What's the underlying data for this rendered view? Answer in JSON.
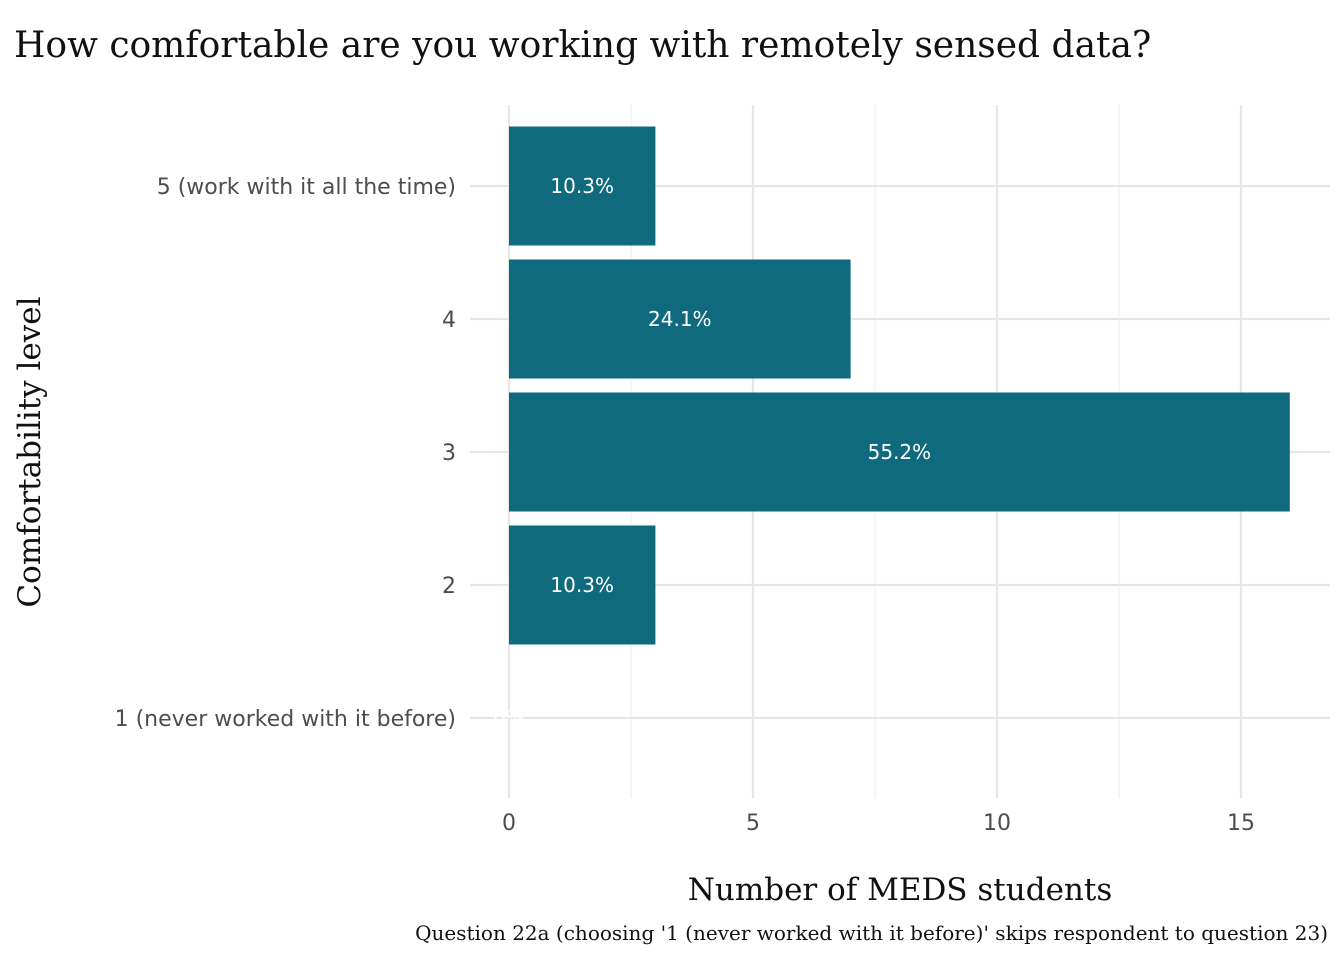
{
  "chart_data": {
    "type": "bar",
    "orientation": "horizontal",
    "title": "How comfortable are you working with remotely sensed data?",
    "xlabel": "Number of MEDS students",
    "ylabel": "Comfortability level",
    "caption": "Question 22a (choosing '1 (never worked with it before)' skips respondent to question 23)",
    "categories": [
      "1 (never worked with it before)",
      "2",
      "3",
      "4",
      "5 (work with it all the time)"
    ],
    "values": [
      0,
      3,
      16,
      7,
      3
    ],
    "labels": [
      "0%",
      "10.3%",
      "55.2%",
      "24.1%",
      "10.3%"
    ],
    "xlim": [
      0,
      16.8
    ],
    "xticks": [
      0,
      5,
      10,
      15
    ],
    "grid": true,
    "bar_color": "#0f6a7d",
    "legend": "none"
  }
}
